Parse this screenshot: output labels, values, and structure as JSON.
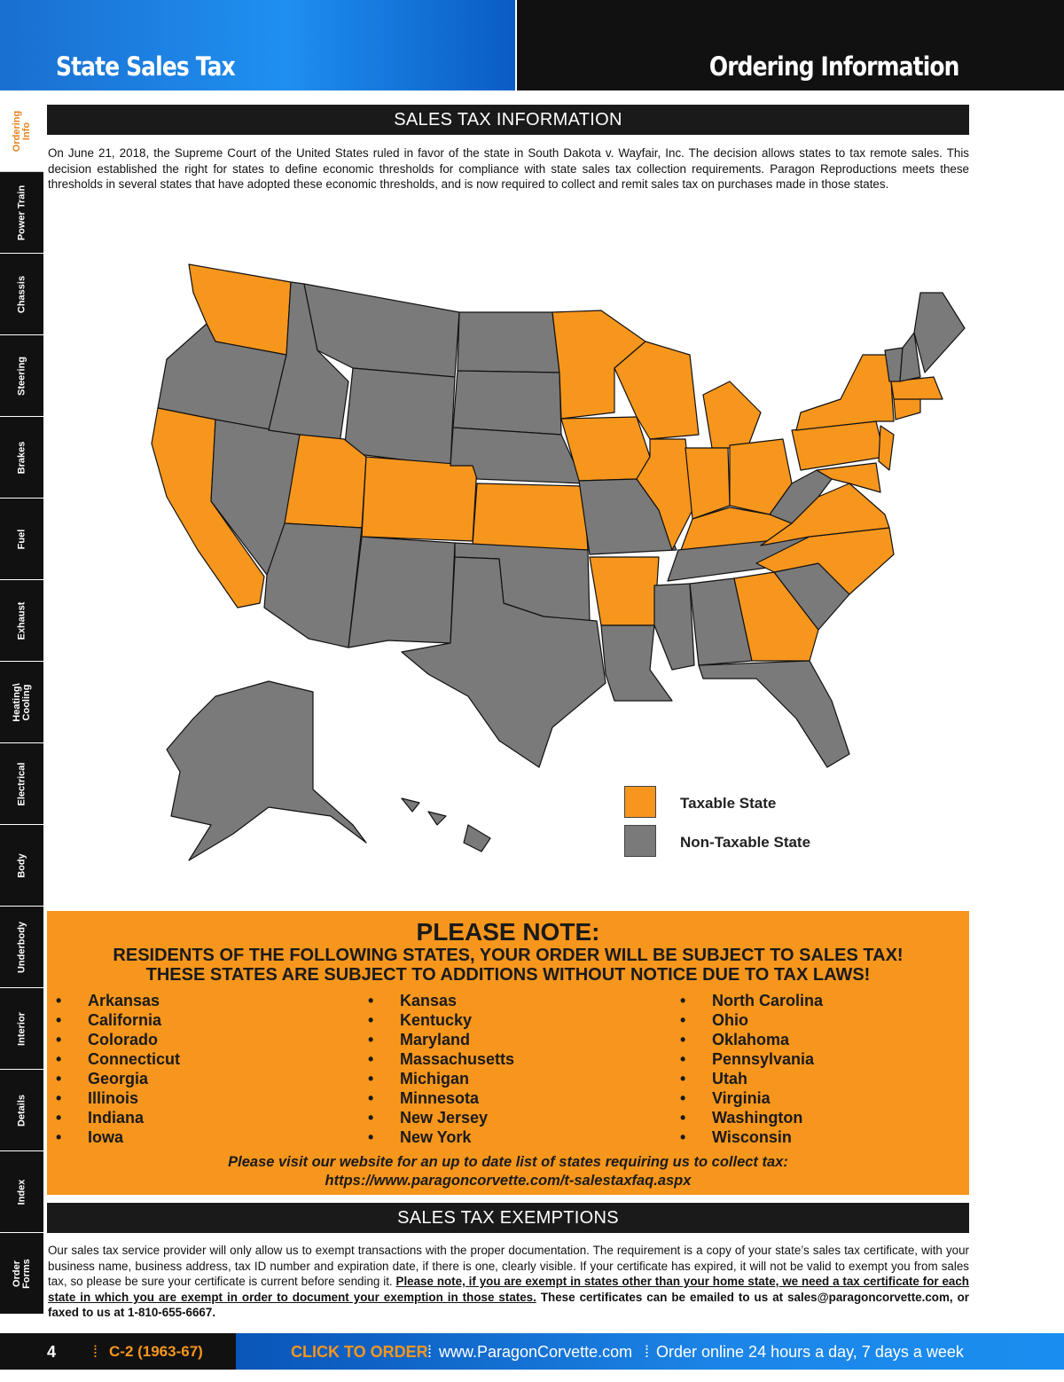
{
  "header": {
    "left_title": "State Sales Tax",
    "right_title": "Ordering Information"
  },
  "sidebar": {
    "tabs": [
      {
        "label": "Ordering\nInfo",
        "active": true
      },
      {
        "label": "Power Train"
      },
      {
        "label": "Chassis"
      },
      {
        "label": "Steering"
      },
      {
        "label": "Brakes"
      },
      {
        "label": "Fuel"
      },
      {
        "label": "Exhaust"
      },
      {
        "label": "Heating\\\nCooling"
      },
      {
        "label": "Electrical"
      },
      {
        "label": "Body"
      },
      {
        "label": "Underbody"
      },
      {
        "label": "Interior"
      },
      {
        "label": "Details"
      },
      {
        "label": "Index"
      },
      {
        "label": "Order\nForms"
      }
    ]
  },
  "info": {
    "title": "SALES TAX INFORMATION",
    "text": "On June 21, 2018, the Supreme Court of the United States ruled in favor of the state in South Dakota v. Wayfair, Inc. The decision allows states to tax remote sales. This decision established the right for states to define economic thresholds for compliance with state sales tax collection requirements. Paragon Reproductions meets these thresholds in several states that have adopted these economic thresholds, and is now required to collect and remit sales tax on purchases made in those states."
  },
  "map": {
    "taxable_color": "#f7961d",
    "nontaxable_color": "#7a7a7b",
    "legend": {
      "taxable": "Taxable State",
      "nontaxable": "Non-Taxable State"
    }
  },
  "note": {
    "title": "PLEASE NOTE:",
    "line1": "RESIDENTS OF THE FOLLOWING STATES, YOUR ORDER WILL BE SUBJECT TO SALES TAX!",
    "line2": "THESE STATES ARE SUBJECT TO ADDITIONS WITHOUT NOTICE DUE TO TAX LAWS!",
    "columns": [
      [
        "Arkansas",
        "California",
        "Colorado",
        "Connecticut",
        "Georgia",
        "Illinois",
        "Indiana",
        "Iowa"
      ],
      [
        "Kansas",
        "Kentucky",
        "Maryland",
        "Massachusetts",
        "Michigan",
        "Minnesota",
        "New Jersey",
        "New York"
      ],
      [
        "North Carolina",
        "Ohio",
        "Oklahoma",
        "Pennsylvania",
        "Utah",
        "Virginia",
        "Washington",
        "Wisconsin"
      ]
    ],
    "visit": "Please visit our website for an up to date list of states requiring us to collect tax:",
    "url": "https://www.paragoncorvette.com/t-salestaxfaq.aspx"
  },
  "exemptions": {
    "title": "SALES TAX EXEMPTIONS",
    "text1": "Our sales tax service provider will only allow us to exempt transactions with the proper documentation. The requirement is a copy of your state’s sales tax certificate, with your business name, business address, tax ID number and expiration date, if there is one, clearly visible. If your certificate has expired, it will not be valid to exempt you from sales tax, so please be sure your certificate is current before sending it.",
    "text2": "Please note, if you are exempt in states other than your home state, we need a tax certificate for each state in which you are exempt in order to document your exemption in those states.",
    "text3": "These certificates can be emailed to us at sales@paragoncorvette.com, or faxed to us at 1-810-655-6667."
  },
  "footer": {
    "page": "4",
    "catalog": "C-2 (1963-67)",
    "click": "CLICK TO ORDER",
    "site": "www.ParagonCorvette.com",
    "hours": "Order online 24 hours a day, 7 days a week",
    "sep": "⁞"
  }
}
